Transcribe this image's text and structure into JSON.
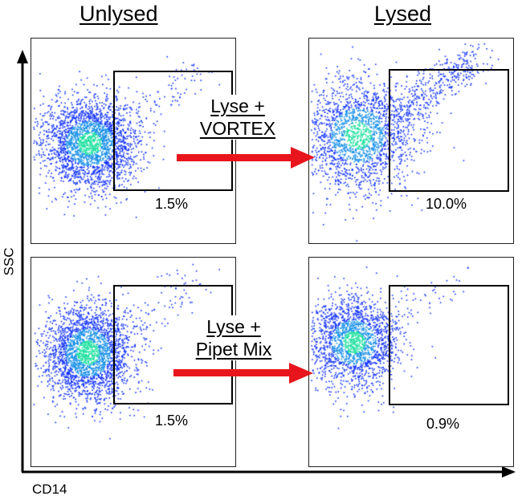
{
  "columns": {
    "left": "Unlysed",
    "right": "Lysed"
  },
  "axes": {
    "y": "SSC",
    "x": "CD14"
  },
  "panels": {
    "top_left": {
      "percent": "1.5%",
      "gate_fraction": 0.015
    },
    "top_right": {
      "percent": "10.0%",
      "gate_fraction": 0.1
    },
    "bottom_left": {
      "percent": "1.5%",
      "gate_fraction": 0.015
    },
    "bottom_right": {
      "percent": "0.9%",
      "gate_fraction": 0.009
    }
  },
  "steps": {
    "top": {
      "line1": "Lyse +",
      "line2": "VORTEX"
    },
    "bottom": {
      "line1": "Lyse +",
      "line2": "Pipet Mix"
    }
  },
  "colors": {
    "arrow": "#e8161c",
    "dots_outer": "#1030ff",
    "dots_core": "#20e0a0"
  }
}
